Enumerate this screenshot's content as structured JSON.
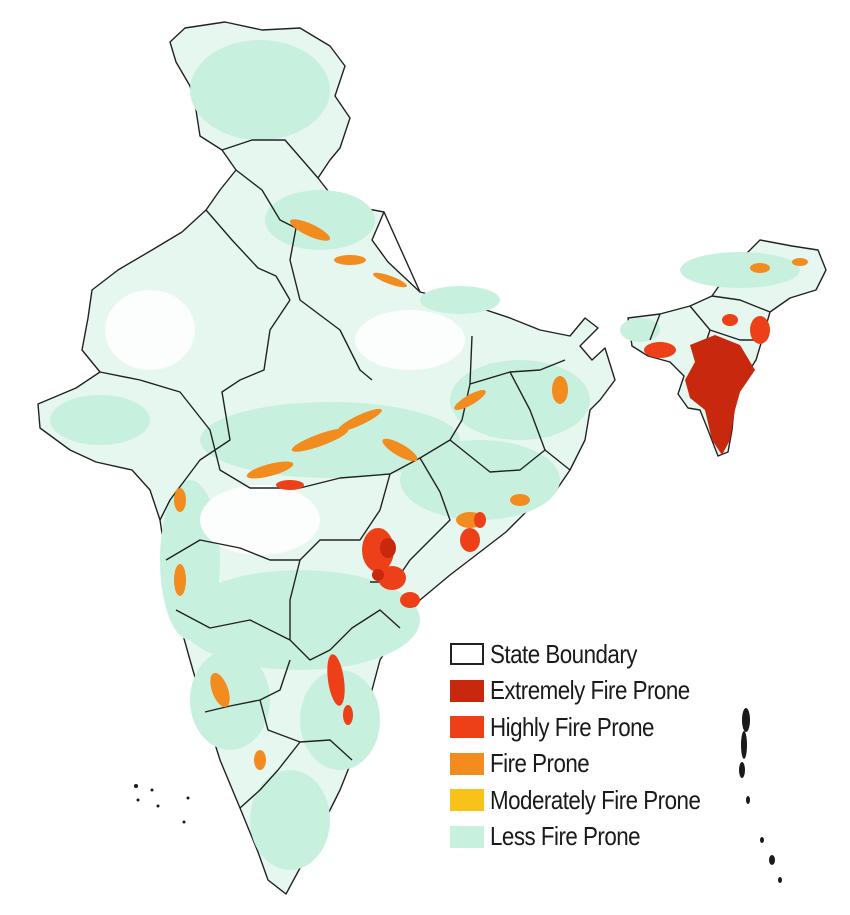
{
  "colors": {
    "state_boundary_fill": "#ffffff",
    "state_boundary_stroke": "#222222",
    "extremely_fire_prone": "#c8280e",
    "highly_fire_prone": "#ee4018",
    "fire_prone": "#f28c1e",
    "moderately_fire_prone": "#f8c21a",
    "less_fire_prone": "#c8f0df"
  },
  "legend": [
    {
      "label": "State Boundary",
      "color": "#ffffff",
      "outlined": true
    },
    {
      "label": "Extremely Fire Prone",
      "color": "#c8280e"
    },
    {
      "label": "Highly Fire Prone",
      "color": "#ee4018"
    },
    {
      "label": "Fire Prone",
      "color": "#f28c1e"
    },
    {
      "label": "Moderately Fire Prone",
      "color": "#f8c21a"
    },
    {
      "label": "Less Fire Prone",
      "color": "#c8f0df"
    }
  ]
}
